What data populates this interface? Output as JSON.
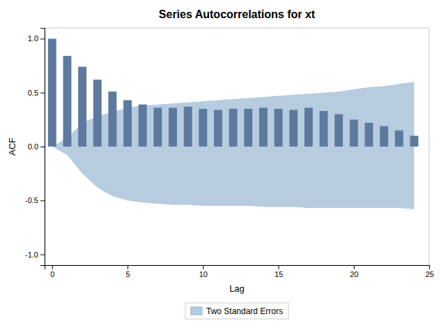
{
  "chart_data": {
    "type": "bar",
    "title": "Series Autocorrelations for xt",
    "x_label": "Lag",
    "y_label": "ACF",
    "x": [
      0,
      1,
      2,
      3,
      4,
      5,
      6,
      7,
      8,
      9,
      10,
      11,
      12,
      13,
      14,
      15,
      16,
      17,
      18,
      19,
      20,
      21,
      22,
      23,
      24
    ],
    "series": [
      {
        "name": "Two Standard Errors",
        "type": "area",
        "color": "#b8ccdf",
        "upper": [
          0.0,
          0.08,
          0.22,
          0.28,
          0.32,
          0.36,
          0.38,
          0.39,
          0.4,
          0.41,
          0.42,
          0.43,
          0.44,
          0.45,
          0.46,
          0.47,
          0.48,
          0.49,
          0.5,
          0.51,
          0.53,
          0.55,
          0.56,
          0.58,
          0.6
        ],
        "lower": [
          0.0,
          -0.08,
          -0.25,
          -0.38,
          -0.46,
          -0.5,
          -0.52,
          -0.53,
          -0.54,
          -0.54,
          -0.55,
          -0.55,
          -0.55,
          -0.55,
          -0.56,
          -0.56,
          -0.56,
          -0.57,
          -0.57,
          -0.57,
          -0.57,
          -0.57,
          -0.57,
          -0.57,
          -0.58
        ]
      },
      {
        "type": "bar",
        "color": "#5c7a9e",
        "values": [
          1.0,
          0.84,
          0.74,
          0.62,
          0.51,
          0.43,
          0.39,
          0.36,
          0.36,
          0.37,
          0.35,
          0.34,
          0.35,
          0.35,
          0.36,
          0.35,
          0.34,
          0.36,
          0.33,
          0.3,
          0.25,
          0.22,
          0.19,
          0.15,
          0.1
        ]
      }
    ],
    "xlim": [
      -0.5,
      25.0
    ],
    "xticks": [
      0,
      5,
      10,
      15,
      20,
      25
    ],
    "ylim": [
      -1.1,
      1.1
    ],
    "yticks": [
      {
        "value": -1.0,
        "label": "-1.0"
      },
      {
        "value": -0.5,
        "label": "-0.5"
      },
      {
        "value": 0.0,
        "label": "0.0"
      },
      {
        "value": 0.5,
        "label": "0.5"
      },
      {
        "value": 1.0,
        "label": "1.0"
      }
    ],
    "grid": false,
    "legend": "bottom"
  }
}
